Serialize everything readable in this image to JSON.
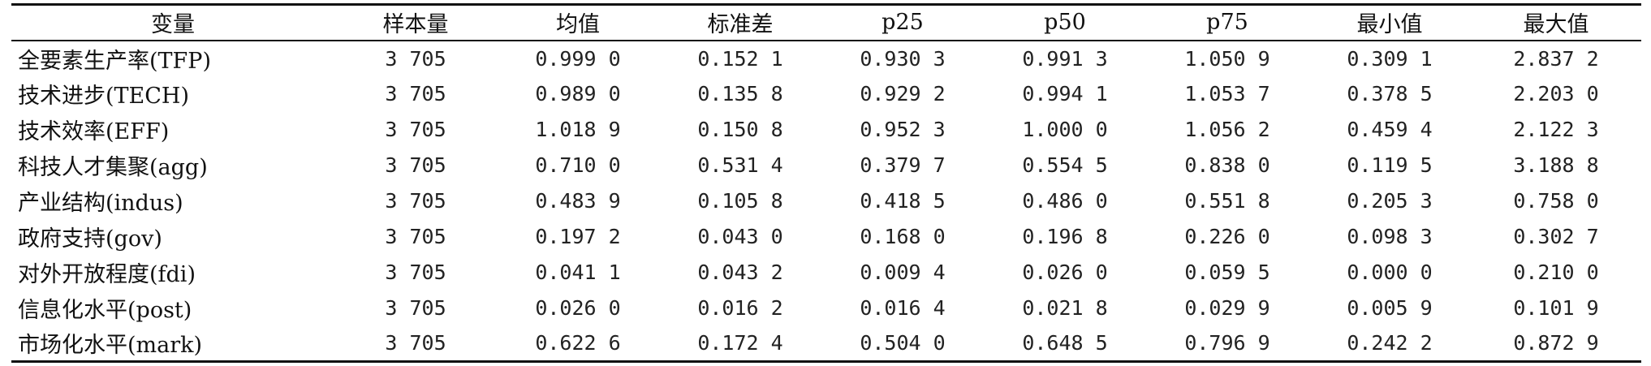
{
  "table": {
    "headers": [
      "变量",
      "样本量",
      "均值",
      "标准差",
      "p25",
      "p50",
      "p75",
      "最小值",
      "最大值"
    ],
    "rows": [
      [
        "全要素生产率(TFP)",
        "3 705",
        "0.999 0",
        "0.152 1",
        "0.930 3",
        "0.991 3",
        "1.050 9",
        "0.309 1",
        "2.837 2"
      ],
      [
        "技术进步(TECH)",
        "3 705",
        "0.989 0",
        "0.135 8",
        "0.929 2",
        "0.994 1",
        "1.053 7",
        "0.378 5",
        "2.203 0"
      ],
      [
        "技术效率(EFF)",
        "3 705",
        "1.018 9",
        "0.150 8",
        "0.952 3",
        "1.000 0",
        "1.056 2",
        "0.459 4",
        "2.122 3"
      ],
      [
        "科技人才集聚(agg)",
        "3 705",
        "0.710 0",
        "0.531 4",
        "0.379 7",
        "0.554 5",
        "0.838 0",
        "0.119 5",
        "3.188 8"
      ],
      [
        "产业结构(indus)",
        "3 705",
        "0.483 9",
        "0.105 8",
        "0.418 5",
        "0.486 0",
        "0.551 8",
        "0.205 3",
        "0.758 0"
      ],
      [
        "政府支持(gov)",
        "3 705",
        "0.197 2",
        "0.043 0",
        "0.168 0",
        "0.196 8",
        "0.226 0",
        "0.098 3",
        "0.302 7"
      ],
      [
        "对外开放程度(fdi)",
        "3 705",
        "0.041 1",
        "0.043 2",
        "0.009 4",
        "0.026 0",
        "0.059 5",
        "0.000 0",
        "0.210 0"
      ],
      [
        "信息化水平(post)",
        "3 705",
        "0.026 0",
        "0.016 2",
        "0.016 4",
        "0.021 8",
        "0.029 9",
        "0.005 9",
        "0.101 9"
      ],
      [
        "市场化水平(mark)",
        "3 705",
        "0.622 6",
        "0.172 4",
        "0.504 0",
        "0.648 5",
        "0.796 9",
        "0.242 2",
        "0.872 9"
      ]
    ]
  }
}
